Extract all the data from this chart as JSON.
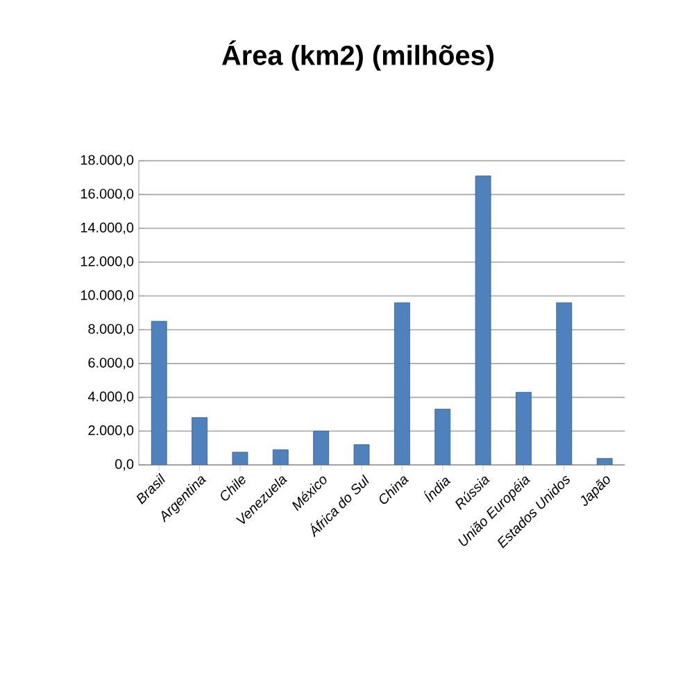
{
  "chart_data": {
    "type": "bar",
    "title": "Área (km2) (milhões)",
    "categories": [
      "Brasil",
      "Argentina",
      "Chile",
      "Venezuela",
      "México",
      "África do Sul",
      "China",
      "Índia",
      "Rússia",
      "União Européia",
      "Estados Unidos",
      "Japão"
    ],
    "values": [
      8500,
      2800,
      750,
      900,
      2000,
      1200,
      9600,
      3300,
      17100,
      4300,
      9600,
      380
    ],
    "color": "#4f81bd",
    "ylim": [
      0,
      18000
    ],
    "yticks": [
      {
        "value": 0,
        "label": "0,0"
      },
      {
        "value": 2000,
        "label": "2.000,0"
      },
      {
        "value": 4000,
        "label": "4.000,0"
      },
      {
        "value": 6000,
        "label": "6.000,0"
      },
      {
        "value": 8000,
        "label": "8.000,0"
      },
      {
        "value": 10000,
        "label": "10.000,0"
      },
      {
        "value": 12000,
        "label": "12.000,0"
      },
      {
        "value": 14000,
        "label": "14.000,0"
      },
      {
        "value": 16000,
        "label": "16.000,0"
      },
      {
        "value": 18000,
        "label": "18.000,0"
      }
    ],
    "grid": "y"
  }
}
